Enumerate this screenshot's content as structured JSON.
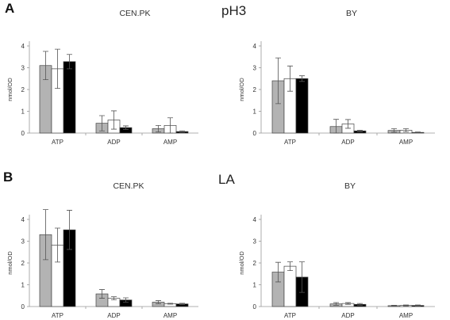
{
  "panels": [
    {
      "letter": "A",
      "condition": "pH3"
    },
    {
      "letter": "B",
      "condition": "LA"
    }
  ],
  "colors": {
    "series1": "#b3b3b3",
    "series2": "#ffffff",
    "series3": "#000000"
  },
  "chart_data": [
    {
      "type": "bar",
      "title": "CEN.PK",
      "ylabel": "nmol/OD",
      "ylim": [
        0,
        4
      ],
      "yticks": [
        0,
        1,
        2,
        3,
        4
      ],
      "categories": [
        "ATP",
        "ADP",
        "AMP"
      ],
      "series": [
        {
          "values": [
            3.1,
            0.45,
            0.2
          ],
          "errors": [
            0.65,
            0.35,
            0.15
          ]
        },
        {
          "values": [
            2.95,
            0.6,
            0.35
          ],
          "errors": [
            0.9,
            0.42,
            0.35
          ]
        },
        {
          "values": [
            3.28,
            0.25,
            0.07
          ],
          "errors": [
            0.33,
            0.08,
            0.03
          ]
        }
      ]
    },
    {
      "type": "bar",
      "title": "BY",
      "ylabel": "nmol/OD",
      "ylim": [
        0,
        4
      ],
      "yticks": [
        0,
        1,
        2,
        3,
        4
      ],
      "categories": [
        "ATP",
        "ADP",
        "AMP"
      ],
      "series": [
        {
          "values": [
            2.4,
            0.3,
            0.12
          ],
          "errors": [
            1.05,
            0.33,
            0.08
          ]
        },
        {
          "values": [
            2.5,
            0.42,
            0.13
          ],
          "errors": [
            0.58,
            0.2,
            0.07
          ]
        },
        {
          "values": [
            2.5,
            0.1,
            0.03
          ],
          "errors": [
            0.13,
            0.03,
            0.02
          ]
        }
      ]
    },
    {
      "type": "bar",
      "title": "CEN.PK",
      "ylabel": "nmol/OD",
      "ylim": [
        0,
        4
      ],
      "yticks": [
        0,
        1,
        2,
        3,
        4
      ],
      "categories": [
        "ATP",
        "ADP",
        "AMP"
      ],
      "series": [
        {
          "values": [
            3.3,
            0.58,
            0.2
          ],
          "errors": [
            1.15,
            0.2,
            0.07
          ]
        },
        {
          "values": [
            2.82,
            0.38,
            0.13
          ],
          "errors": [
            0.78,
            0.07,
            0.02
          ]
        },
        {
          "values": [
            3.52,
            0.3,
            0.12
          ],
          "errors": [
            0.9,
            0.1,
            0.03
          ]
        }
      ]
    },
    {
      "type": "bar",
      "title": "BY",
      "ylabel": "nmol/OD",
      "ylim": [
        0,
        4
      ],
      "yticks": [
        0,
        1,
        2,
        3,
        4
      ],
      "categories": [
        "ATP",
        "ADP",
        "AMP"
      ],
      "series": [
        {
          "values": [
            1.58,
            0.12,
            0.04
          ],
          "errors": [
            0.45,
            0.06,
            0.02
          ]
        },
        {
          "values": [
            1.85,
            0.14,
            0.05
          ],
          "errors": [
            0.2,
            0.04,
            0.02
          ]
        },
        {
          "values": [
            1.35,
            0.1,
            0.05
          ],
          "errors": [
            0.7,
            0.04,
            0.02
          ]
        }
      ]
    }
  ]
}
